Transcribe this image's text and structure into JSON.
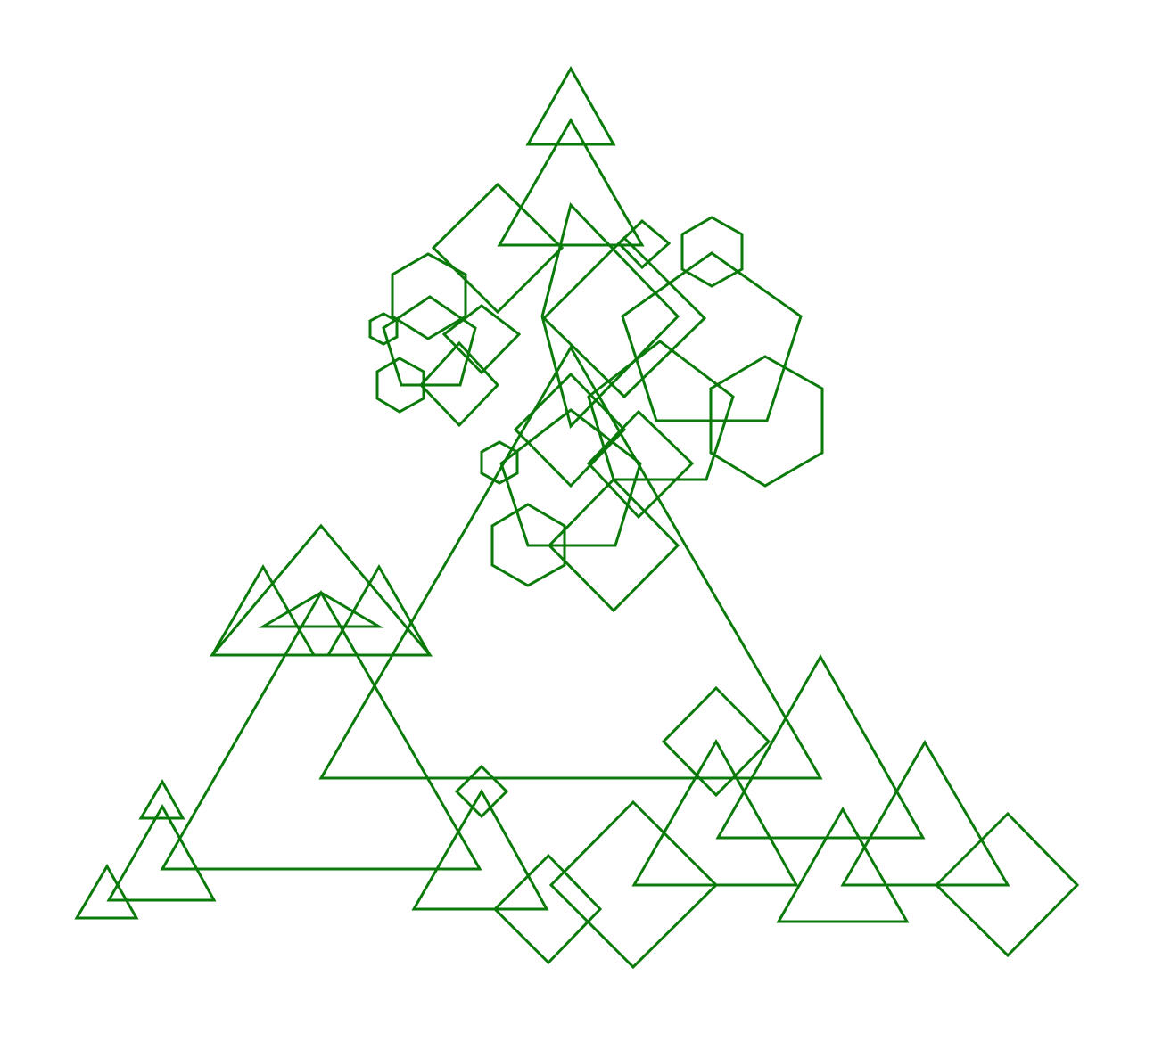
{
  "figure": {
    "stroke_color": "#0a7a0a",
    "background_color": "#ffffff",
    "shape_kinds": [
      "triangle",
      "diamond",
      "pentagon",
      "hexagon"
    ]
  }
}
